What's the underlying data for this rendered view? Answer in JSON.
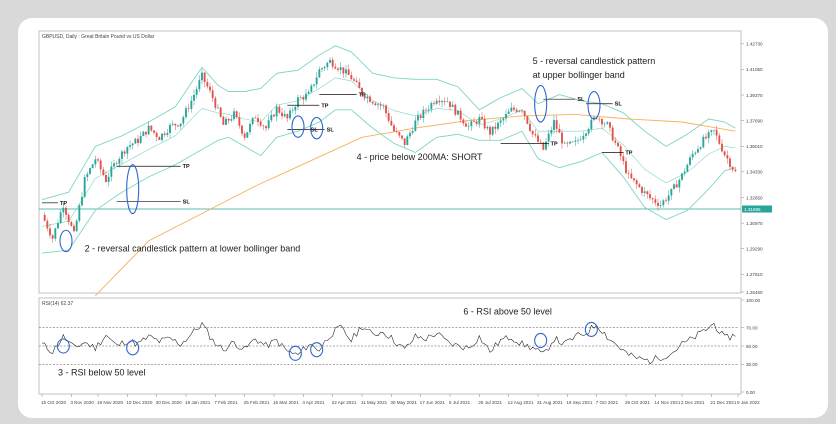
{
  "title": "GBPUSD, Daily : Great Britain Pound vs US Dollar",
  "chart_data": {
    "type": "line",
    "price_panel": {
      "ylim": [
        1.2645,
        1.4285
      ],
      "y_ticks": [
        "1.42730",
        "1.41050",
        "1.39370",
        "1.37690",
        "1.36010",
        "1.34330",
        "1.32650",
        "1.30970",
        "1.29290",
        "1.27610",
        "1.26450"
      ],
      "y_tick_values": [
        1.4273,
        1.4105,
        1.3937,
        1.3769,
        1.3601,
        1.3433,
        1.3265,
        1.3097,
        1.2929,
        1.2761,
        1.2645
      ],
      "highlight_price": {
        "label": "1.31895",
        "value": 1.31895
      },
      "close_series": [
        [
          0,
          1.315
        ],
        [
          4,
          1.3
        ],
        [
          8,
          1.322
        ],
        [
          12,
          1.302
        ],
        [
          16,
          1.338
        ],
        [
          20,
          1.352
        ],
        [
          24,
          1.338
        ],
        [
          28,
          1.351
        ],
        [
          32,
          1.36
        ],
        [
          36,
          1.364
        ],
        [
          40,
          1.372
        ],
        [
          44,
          1.366
        ],
        [
          48,
          1.373
        ],
        [
          52,
          1.376
        ],
        [
          56,
          1.39
        ],
        [
          60,
          1.406
        ],
        [
          64,
          1.392
        ],
        [
          68,
          1.374
        ],
        [
          72,
          1.381
        ],
        [
          76,
          1.367
        ],
        [
          80,
          1.38
        ],
        [
          84,
          1.372
        ],
        [
          88,
          1.385
        ],
        [
          92,
          1.378
        ],
        [
          96,
          1.391
        ],
        [
          100,
          1.394
        ],
        [
          104,
          1.41
        ],
        [
          108,
          1.416
        ],
        [
          112,
          1.411
        ],
        [
          116,
          1.405
        ],
        [
          120,
          1.395
        ],
        [
          124,
          1.39
        ],
        [
          128,
          1.386
        ],
        [
          132,
          1.37
        ],
        [
          136,
          1.362
        ],
        [
          140,
          1.376
        ],
        [
          144,
          1.384
        ],
        [
          148,
          1.392
        ],
        [
          152,
          1.39
        ],
        [
          156,
          1.381
        ],
        [
          160,
          1.373
        ],
        [
          164,
          1.378
        ],
        [
          168,
          1.369
        ],
        [
          172,
          1.376
        ],
        [
          176,
          1.384
        ],
        [
          180,
          1.385
        ],
        [
          184,
          1.368
        ],
        [
          188,
          1.358
        ],
        [
          192,
          1.376
        ],
        [
          196,
          1.36
        ],
        [
          200,
          1.362
        ],
        [
          204,
          1.371
        ],
        [
          208,
          1.38
        ],
        [
          212,
          1.374
        ],
        [
          216,
          1.358
        ],
        [
          220,
          1.34
        ],
        [
          224,
          1.333
        ],
        [
          228,
          1.326
        ],
        [
          232,
          1.322
        ],
        [
          236,
          1.33
        ],
        [
          240,
          1.341
        ],
        [
          244,
          1.355
        ],
        [
          248,
          1.364
        ],
        [
          252,
          1.37
        ],
        [
          256,
          1.355
        ],
        [
          260,
          1.343
        ]
      ],
      "ma200": [
        [
          20,
          1.262
        ],
        [
          40,
          1.298
        ],
        [
          60,
          1.316
        ],
        [
          80,
          1.334
        ],
        [
          100,
          1.35
        ],
        [
          120,
          1.366
        ],
        [
          140,
          1.372
        ],
        [
          160,
          1.377
        ],
        [
          180,
          1.38
        ],
        [
          200,
          1.381
        ],
        [
          220,
          1.378
        ],
        [
          240,
          1.376
        ],
        [
          260,
          1.37
        ]
      ],
      "bb_upper": [
        [
          0,
          1.325
        ],
        [
          10,
          1.33
        ],
        [
          20,
          1.36
        ],
        [
          30,
          1.367
        ],
        [
          40,
          1.376
        ],
        [
          50,
          1.386
        ],
        [
          60,
          1.412
        ],
        [
          66,
          1.4
        ],
        [
          70,
          1.396
        ],
        [
          76,
          1.396
        ],
        [
          82,
          1.398
        ],
        [
          88,
          1.408
        ],
        [
          96,
          1.41
        ],
        [
          104,
          1.42
        ],
        [
          110,
          1.426
        ],
        [
          116,
          1.422
        ],
        [
          124,
          1.408
        ],
        [
          132,
          1.405
        ],
        [
          140,
          1.404
        ],
        [
          148,
          1.404
        ],
        [
          156,
          1.399
        ],
        [
          164,
          1.384
        ],
        [
          172,
          1.392
        ],
        [
          180,
          1.398
        ],
        [
          186,
          1.388
        ],
        [
          194,
          1.394
        ],
        [
          202,
          1.39
        ],
        [
          210,
          1.388
        ],
        [
          218,
          1.382
        ],
        [
          226,
          1.37
        ],
        [
          234,
          1.36
        ],
        [
          242,
          1.368
        ],
        [
          250,
          1.378
        ],
        [
          256,
          1.376
        ],
        [
          260,
          1.372
        ]
      ],
      "bb_lower": [
        [
          0,
          1.29
        ],
        [
          10,
          1.292
        ],
        [
          20,
          1.318
        ],
        [
          30,
          1.33
        ],
        [
          40,
          1.34
        ],
        [
          50,
          1.348
        ],
        [
          60,
          1.358
        ],
        [
          66,
          1.364
        ],
        [
          70,
          1.366
        ],
        [
          76,
          1.36
        ],
        [
          82,
          1.354
        ],
        [
          88,
          1.366
        ],
        [
          96,
          1.37
        ],
        [
          104,
          1.376
        ],
        [
          110,
          1.384
        ],
        [
          116,
          1.384
        ],
        [
          124,
          1.372
        ],
        [
          132,
          1.362
        ],
        [
          140,
          1.356
        ],
        [
          148,
          1.366
        ],
        [
          156,
          1.368
        ],
        [
          164,
          1.364
        ],
        [
          172,
          1.364
        ],
        [
          180,
          1.37
        ],
        [
          186,
          1.352
        ],
        [
          194,
          1.346
        ],
        [
          202,
          1.35
        ],
        [
          210,
          1.356
        ],
        [
          218,
          1.34
        ],
        [
          226,
          1.32
        ],
        [
          234,
          1.312
        ],
        [
          242,
          1.318
        ],
        [
          250,
          1.332
        ],
        [
          256,
          1.344
        ],
        [
          260,
          1.346
        ]
      ],
      "annotations": [
        {
          "text": "5 - reversal candlestick pattern",
          "x": 184,
          "y": 1.414
        },
        {
          "text": "at upper bollinger band",
          "x": 184,
          "y": 1.405
        },
        {
          "text": "4 - price below 200MA: SHORT",
          "x": 118,
          "y": 1.351
        },
        {
          "text": "2 - reversal candlestick pattern at lower bollinger band",
          "x": 16,
          "y": 1.291
        }
      ],
      "levels": [
        {
          "label": "TP",
          "x1": 0,
          "x2": 6,
          "y": 1.323
        },
        {
          "label": "SL",
          "x1": 28,
          "x2": 52,
          "y": 1.324
        },
        {
          "label": "TP",
          "x1": 28,
          "x2": 52,
          "y": 1.347
        },
        {
          "label": "SL",
          "x1": 92,
          "x2": 100,
          "y": 1.371
        },
        {
          "label": "SL",
          "x1": 100,
          "x2": 106,
          "y": 1.371
        },
        {
          "label": "TP",
          "x1": 92,
          "x2": 104,
          "y": 1.387
        },
        {
          "label": "TP",
          "x1": 104,
          "x2": 118,
          "y": 1.394
        },
        {
          "label": "SL",
          "x1": 188,
          "x2": 200,
          "y": 1.391
        },
        {
          "label": "TP",
          "x1": 172,
          "x2": 190,
          "y": 1.362
        },
        {
          "label": "SL",
          "x1": 204,
          "x2": 214,
          "y": 1.388
        },
        {
          "label": "TP",
          "x1": 210,
          "x2": 218,
          "y": 1.356
        }
      ],
      "ellipses": [
        {
          "x": 9,
          "y": 1.298,
          "ry": 0.007
        },
        {
          "x": 34,
          "y": 1.332,
          "ry": 0.016
        },
        {
          "x": 96,
          "y": 1.373,
          "ry": 0.007
        },
        {
          "x": 103,
          "y": 1.372,
          "ry": 0.007
        },
        {
          "x": 187,
          "y": 1.388,
          "ry": 0.012
        },
        {
          "x": 207,
          "y": 1.387,
          "ry": 0.009
        }
      ]
    },
    "rsi_panel": {
      "label": "RSI(14) 62.37",
      "ylim": [
        0,
        100
      ],
      "y_ticks": [
        "100.00",
        "70.00",
        "50.00",
        "30.00",
        "0.00"
      ],
      "y_tick_values": [
        100,
        70,
        50,
        30,
        0
      ],
      "levels": [
        70,
        50,
        30
      ],
      "series": [
        [
          0,
          52
        ],
        [
          4,
          44
        ],
        [
          8,
          60
        ],
        [
          12,
          48
        ],
        [
          16,
          54
        ],
        [
          20,
          48
        ],
        [
          24,
          62
        ],
        [
          28,
          50
        ],
        [
          32,
          56
        ],
        [
          36,
          52
        ],
        [
          40,
          60
        ],
        [
          44,
          55
        ],
        [
          48,
          58
        ],
        [
          52,
          52
        ],
        [
          56,
          63
        ],
        [
          60,
          74
        ],
        [
          64,
          56
        ],
        [
          68,
          46
        ],
        [
          72,
          54
        ],
        [
          76,
          46
        ],
        [
          80,
          58
        ],
        [
          84,
          50
        ],
        [
          88,
          56
        ],
        [
          92,
          44
        ],
        [
          96,
          40
        ],
        [
          100,
          52
        ],
        [
          104,
          46
        ],
        [
          108,
          62
        ],
        [
          112,
          70
        ],
        [
          116,
          56
        ],
        [
          120,
          72
        ],
        [
          124,
          62
        ],
        [
          128,
          66
        ],
        [
          132,
          56
        ],
        [
          136,
          46
        ],
        [
          140,
          60
        ],
        [
          144,
          58
        ],
        [
          148,
          64
        ],
        [
          152,
          54
        ],
        [
          156,
          50
        ],
        [
          160,
          48
        ],
        [
          164,
          60
        ],
        [
          168,
          44
        ],
        [
          172,
          56
        ],
        [
          176,
          60
        ],
        [
          180,
          52
        ],
        [
          184,
          48
        ],
        [
          188,
          40
        ],
        [
          192,
          58
        ],
        [
          196,
          52
        ],
        [
          200,
          60
        ],
        [
          204,
          64
        ],
        [
          208,
          74
        ],
        [
          212,
          60
        ],
        [
          216,
          50
        ],
        [
          220,
          40
        ],
        [
          224,
          36
        ],
        [
          228,
          34
        ],
        [
          232,
          38
        ],
        [
          236,
          42
        ],
        [
          240,
          52
        ],
        [
          244,
          58
        ],
        [
          248,
          66
        ],
        [
          252,
          74
        ],
        [
          256,
          58
        ],
        [
          260,
          62
        ]
      ],
      "annotations": [
        {
          "text": "6 - RSI above 50 level",
          "x": 158,
          "y": 84
        },
        {
          "text": "3 - RSI below 50 level",
          "x": 6,
          "y": 18
        }
      ],
      "ellipses": [
        {
          "x": 8,
          "y": 50
        },
        {
          "x": 34,
          "y": 48
        },
        {
          "x": 95,
          "y": 42
        },
        {
          "x": 103,
          "y": 46
        },
        {
          "x": 187,
          "y": 56
        },
        {
          "x": 206,
          "y": 68
        }
      ]
    },
    "x_ticks": [
      "15 Oct 2020",
      "3 Nov 2020",
      "19 Nov 2020",
      "10 Dec 2020",
      "30 Dec 2020",
      "19 Jan 2021",
      "7 Feb 2021",
      "25 Feb 2021",
      "16 Mar 2021",
      "4 Apr 2021",
      "22 Apr 2021",
      "11 May 2021",
      "30 May 2021",
      "17 Jun 2021",
      "6 Jul 2021",
      "25 Jul 2021",
      "12 Aug 2021",
      "31 Aug 2021",
      "19 Sep 2021",
      "7 Oct 2021",
      "26 Oct 2021",
      "14 Nov 2021",
      "2 Dec 2021",
      "21 Dec 2021",
      "9 Jan 2022"
    ],
    "x_tick_values": [
      0,
      11,
      21,
      32,
      43,
      54,
      65,
      76,
      87,
      98,
      109,
      120,
      131,
      142,
      153,
      164,
      175,
      186,
      197,
      208,
      219,
      230,
      240,
      251,
      261
    ]
  },
  "colors": {
    "bull": "#26a69a",
    "bear": "#e0524b",
    "bands": "#7fd6c4",
    "ma": "#f5b25a",
    "price_line": "#26a69a",
    "ellipse": "#2f66d0",
    "rsi": "#1a1a1a"
  }
}
